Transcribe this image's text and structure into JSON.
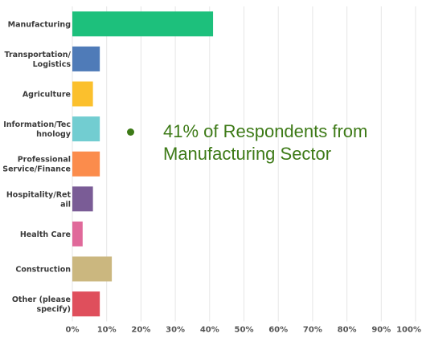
{
  "chart_data": {
    "type": "bar",
    "orientation": "horizontal",
    "categories": [
      [
        "Manufacturing"
      ],
      [
        "Transportation/",
        "Logistics"
      ],
      [
        "Agriculture"
      ],
      [
        "Information/Tec",
        "hnology"
      ],
      [
        "Professional",
        "Service/Finance"
      ],
      [
        "Hospitality/Ret",
        "ail"
      ],
      [
        "Health Care"
      ],
      [
        "Construction"
      ],
      [
        "Other (please",
        "specify)"
      ]
    ],
    "values": [
      41,
      8,
      6,
      8,
      8,
      6,
      3,
      11.5,
      8
    ],
    "colors": [
      "#1dc07c",
      "#4f7bb8",
      "#fbc02d",
      "#72cdd1",
      "#fb8c4c",
      "#7a5c96",
      "#e0699a",
      "#cbb77f",
      "#df4f5c"
    ],
    "xlim": [
      0,
      100
    ],
    "xticks": [
      0,
      10,
      20,
      30,
      40,
      50,
      60,
      70,
      80,
      90,
      100
    ],
    "xtick_labels": [
      "0%",
      "10%",
      "20%",
      "30%",
      "40%",
      "50%",
      "60%",
      "70%",
      "80%",
      "90%",
      "100%"
    ],
    "grid": true
  },
  "annotation": {
    "text": "41% of Respondents from Manufacturing Sector",
    "color": "#3d7a17"
  }
}
